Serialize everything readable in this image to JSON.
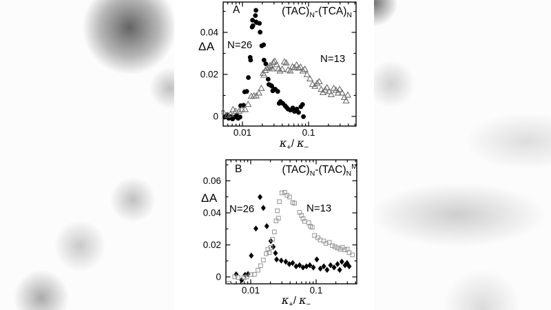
{
  "figure": {
    "page_bg": "#ffffff",
    "backdrop_base": "#fcfcfc",
    "marker_black": "#000000",
    "marker_gray_triangle": "#6e6e6e",
    "marker_gray_square": "#9a9a9a"
  },
  "chart_data": [
    {
      "type": "scatter",
      "panel": "A",
      "corner_label": "A",
      "title": "(TAC)N-(TCA)N",
      "title_segments": [
        {
          "t": "(TAC)",
          "s": "n"
        },
        {
          "t": "N",
          "s": "sub"
        },
        {
          "t": "-(TCA)",
          "s": "n"
        },
        {
          "t": "N",
          "s": "sub"
        }
      ],
      "ylabel": "ΔA",
      "xlabel": "κ+/κ−",
      "xlabel_segments": [
        {
          "t": "κ",
          "s": "kappa"
        },
        {
          "t": "+",
          "s": "sub"
        },
        {
          "t": "/ ",
          "s": "n"
        },
        {
          "t": "κ",
          "s": "kappa"
        },
        {
          "t": "−",
          "s": "sub"
        }
      ],
      "xscale": "log",
      "grid": false,
      "xlim": [
        0.00511,
        0.523
      ],
      "ylim": [
        -0.00459,
        0.05443
      ],
      "x_ticks": [
        {
          "value": 0.01,
          "label": "0.01"
        },
        {
          "value": 0.1,
          "label": "0.1"
        }
      ],
      "y_ticks": [
        {
          "value": 0,
          "label": "0"
        },
        {
          "value": 0.02,
          "label": "0.02"
        },
        {
          "value": 0.04,
          "label": "0.04"
        }
      ],
      "y_minor_ticks": [
        0.01,
        0.03,
        0.05
      ],
      "annotations": [
        {
          "text": "N=26"
        },
        {
          "text": "N=13"
        }
      ],
      "series": [
        {
          "name": "N=26",
          "marker": "filled-circle",
          "color": "#000000",
          "points": [
            [
              0.0054,
              -0.0003
            ],
            [
              0.0059,
              0.0008
            ],
            [
              0.0062,
              -0.0009
            ],
            [
              0.0066,
              -0.0001
            ],
            [
              0.0071,
              -0.0012
            ],
            [
              0.0076,
              -0.0003
            ],
            [
              0.0082,
              0.0004
            ],
            [
              0.0086,
              -0.0009
            ],
            [
              0.0092,
              -0.0003
            ],
            [
              0.0094,
              0.0051
            ],
            [
              0.0104,
              0.0053
            ],
            [
              0.0108,
              0.0117
            ],
            [
              0.0116,
              0.0119
            ],
            [
              0.0123,
              0.0185
            ],
            [
              0.0131,
              0.0281
            ],
            [
              0.0133,
              0.0268
            ],
            [
              0.014,
              0.0425
            ],
            [
              0.0142,
              0.0458
            ],
            [
              0.0144,
              0.0432
            ],
            [
              0.0157,
              0.048
            ],
            [
              0.016,
              0.0505
            ],
            [
              0.0161,
              0.045
            ],
            [
              0.0164,
              0.0447
            ],
            [
              0.0181,
              0.0443
            ],
            [
              0.0185,
              0.0401
            ],
            [
              0.0196,
              0.0336
            ],
            [
              0.0209,
              0.0341
            ],
            [
              0.0212,
              0.0268
            ],
            [
              0.0226,
              0.025
            ],
            [
              0.0245,
              0.0177
            ],
            [
              0.0251,
              0.0152
            ],
            [
              0.0269,
              0.0148
            ],
            [
              0.0278,
              0.0144
            ],
            [
              0.0287,
              0.0122
            ],
            [
              0.0311,
              0.013
            ],
            [
              0.0316,
              0.0128
            ],
            [
              0.0342,
              0.0119
            ],
            [
              0.0359,
              0.0062
            ],
            [
              0.0376,
              0.0071
            ],
            [
              0.0408,
              0.0062
            ],
            [
              0.0442,
              0.0051
            ],
            [
              0.0465,
              0.0043
            ],
            [
              0.049,
              0.0035
            ],
            [
              0.0531,
              0.003
            ],
            [
              0.0576,
              0.004
            ],
            [
              0.0611,
              0.0024
            ],
            [
              0.0662,
              0.0035
            ],
            [
              0.0706,
              0.0019
            ],
            [
              0.0764,
              0.0046
            ],
            [
              0.0812,
              0.0057
            ],
            [
              0.0837,
              -0.0001
            ]
          ]
        },
        {
          "name": "N=13",
          "marker": "open-triangle",
          "color": "#6e6e6e",
          "points": [
            [
              0.0051,
              0.0021
            ],
            [
              0.006,
              0.0005
            ],
            [
              0.0066,
              0.001
            ],
            [
              0.0072,
              0.0032
            ],
            [
              0.0079,
              0.0024
            ],
            [
              0.0089,
              0.0024
            ],
            [
              0.0098,
              0.0032
            ],
            [
              0.011,
              0.0032
            ],
            [
              0.0122,
              0.0057
            ],
            [
              0.0136,
              0.0095
            ],
            [
              0.0149,
              0.0097
            ],
            [
              0.0162,
              0.0097
            ],
            [
              0.0178,
              0.0111
            ],
            [
              0.0193,
              0.0133
            ],
            [
              0.0205,
              0.0205
            ],
            [
              0.0212,
              0.0196
            ],
            [
              0.0222,
              0.0218
            ],
            [
              0.0235,
              0.0228
            ],
            [
              0.0252,
              0.0232
            ],
            [
              0.0262,
              0.0241
            ],
            [
              0.0272,
              0.0236
            ],
            [
              0.0283,
              0.0226
            ],
            [
              0.0295,
              0.0257
            ],
            [
              0.031,
              0.0262
            ],
            [
              0.033,
              0.0246
            ],
            [
              0.035,
              0.0226
            ],
            [
              0.037,
              0.0216
            ],
            [
              0.04,
              0.0224
            ],
            [
              0.043,
              0.0259
            ],
            [
              0.046,
              0.0254
            ],
            [
              0.049,
              0.0221
            ],
            [
              0.053,
              0.0216
            ],
            [
              0.057,
              0.0236
            ],
            [
              0.061,
              0.0231
            ],
            [
              0.066,
              0.0244
            ],
            [
              0.071,
              0.0229
            ],
            [
              0.076,
              0.0234
            ],
            [
              0.082,
              0.0216
            ],
            [
              0.088,
              0.0224
            ],
            [
              0.095,
              0.0198
            ],
            [
              0.105,
              0.0178
            ],
            [
              0.115,
              0.0152
            ],
            [
              0.125,
              0.0143
            ],
            [
              0.135,
              0.0157
            ],
            [
              0.145,
              0.0165
            ],
            [
              0.155,
              0.0128
            ],
            [
              0.165,
              0.0113
            ],
            [
              0.178,
              0.0125
            ],
            [
              0.19,
              0.0136
            ],
            [
              0.205,
              0.0118
            ],
            [
              0.22,
              0.0103
            ],
            [
              0.24,
              0.0133
            ],
            [
              0.26,
              0.0124
            ],
            [
              0.28,
              0.0111
            ],
            [
              0.296,
              0.0128
            ],
            [
              0.322,
              0.0111
            ],
            [
              0.348,
              0.009
            ],
            [
              0.37,
              0.0073
            ],
            [
              0.392,
              0.0101
            ]
          ]
        }
      ]
    },
    {
      "type": "scatter",
      "panel": "B",
      "corner_label": "B",
      "title": "(TAC)N-(TAC)NM",
      "title_segments": [
        {
          "t": "(TAC)",
          "s": "n"
        },
        {
          "t": "N",
          "s": "sub"
        },
        {
          "t": "-(TAC)",
          "s": "n"
        },
        {
          "t": "N",
          "s": "sub"
        },
        {
          "t": "M",
          "s": "sup"
        }
      ],
      "ylabel": "ΔA",
      "xlabel": "κ+/κ−",
      "xlabel_segments": [
        {
          "t": "κ",
          "s": "kappa"
        },
        {
          "t": "+",
          "s": "sub"
        },
        {
          "t": "/ ",
          "s": "n"
        },
        {
          "t": "κ",
          "s": "kappa"
        },
        {
          "t": "−",
          "s": "sub"
        }
      ],
      "xscale": "log",
      "grid": false,
      "xlim": [
        0.00418,
        0.418
      ],
      "ylim": [
        -0.0043,
        0.0731
      ],
      "x_ticks": [
        {
          "value": 0.01,
          "label": "0.01"
        },
        {
          "value": 0.1,
          "label": "0.1"
        }
      ],
      "y_ticks": [
        {
          "value": 0,
          "label": "0"
        },
        {
          "value": 0.02,
          "label": "0.02"
        },
        {
          "value": 0.04,
          "label": "0.04"
        },
        {
          "value": 0.06,
          "label": "0.06"
        }
      ],
      "y_minor_ticks": [
        0.01,
        0.03,
        0.05,
        0.07
      ],
      "annotations": [
        {
          "text": "N=26"
        },
        {
          "text": "N=13"
        }
      ],
      "series": [
        {
          "name": "N=26",
          "marker": "filled-diamond",
          "color": "#000000",
          "points": [
            [
              0.006,
              0.0016
            ],
            [
              0.0073,
              -0.002
            ],
            [
              0.0082,
              0.0013
            ],
            [
              0.0091,
              0.0018
            ],
            [
              0.0102,
              0.0133
            ],
            [
              0.012,
              0.0302
            ],
            [
              0.0139,
              0.0499
            ],
            [
              0.0156,
              0.0431
            ],
            [
              0.0176,
              0.0317
            ],
            [
              0.0203,
              0.0224
            ],
            [
              0.0221,
              0.0188
            ],
            [
              0.0239,
              0.0149
            ],
            [
              0.0249,
              0.0109
            ],
            [
              0.0293,
              0.0102
            ],
            [
              0.0344,
              0.0095
            ],
            [
              0.0389,
              0.008
            ],
            [
              0.0438,
              0.0087
            ],
            [
              0.0494,
              0.0066
            ],
            [
              0.0558,
              0.0073
            ],
            [
              0.063,
              0.0059
            ],
            [
              0.0712,
              0.0066
            ],
            [
              0.0803,
              0.0073
            ],
            [
              0.0907,
              0.0059
            ],
            [
              0.1024,
              0.0109
            ],
            [
              0.116,
              0.0052
            ],
            [
              0.131,
              0.0066
            ],
            [
              0.147,
              0.0044
            ],
            [
              0.166,
              0.0073
            ],
            [
              0.188,
              0.0059
            ],
            [
              0.212,
              0.008
            ],
            [
              0.229,
              0.0044
            ],
            [
              0.247,
              0.0095
            ],
            [
              0.277,
              0.0073
            ],
            [
              0.297,
              0.0087
            ],
            [
              0.32,
              0.0066
            ]
          ]
        },
        {
          "name": "N=13",
          "marker": "open-square",
          "color": "#9a9a9a",
          "points": [
            [
              0.0046,
              -0.004
            ],
            [
              0.0057,
              0.0001
            ],
            [
              0.0064,
              -0.0003
            ],
            [
              0.0079,
              -0.0003
            ],
            [
              0.0087,
              0.0
            ],
            [
              0.0101,
              0.0015
            ],
            [
              0.0114,
              0.0016
            ],
            [
              0.0129,
              0.0042
            ],
            [
              0.0142,
              0.007
            ],
            [
              0.0156,
              0.0105
            ],
            [
              0.0173,
              0.0145
            ],
            [
              0.0183,
              0.0173
            ],
            [
              0.0192,
              0.0152
            ],
            [
              0.0203,
              0.0184
            ],
            [
              0.0215,
              0.0235
            ],
            [
              0.023,
              0.0281
            ],
            [
              0.0245,
              0.035
            ],
            [
              0.0255,
              0.0413
            ],
            [
              0.0266,
              0.0367
            ],
            [
              0.0274,
              0.047
            ],
            [
              0.03,
              0.0525
            ],
            [
              0.0331,
              0.0528
            ],
            [
              0.0359,
              0.051
            ],
            [
              0.0392,
              0.0499
            ],
            [
              0.0438,
              0.0465
            ],
            [
              0.0468,
              0.046
            ],
            [
              0.0558,
              0.0403
            ],
            [
              0.0597,
              0.0384
            ],
            [
              0.0631,
              0.0364
            ],
            [
              0.0668,
              0.0347
            ],
            [
              0.0771,
              0.0338
            ],
            [
              0.0816,
              0.0317
            ],
            [
              0.087,
              0.031
            ],
            [
              0.0944,
              0.0259
            ],
            [
              0.106,
              0.0245
            ],
            [
              0.115,
              0.0231
            ],
            [
              0.131,
              0.0224
            ],
            [
              0.141,
              0.0209
            ],
            [
              0.159,
              0.0216
            ],
            [
              0.177,
              0.0195
            ],
            [
              0.194,
              0.0188
            ],
            [
              0.212,
              0.0181
            ],
            [
              0.233,
              0.0173
            ],
            [
              0.252,
              0.0184
            ],
            [
              0.275,
              0.0169
            ],
            [
              0.299,
              0.0173
            ],
            [
              0.32,
              0.0152
            ],
            [
              0.358,
              0.0138
            ]
          ]
        }
      ]
    }
  ]
}
